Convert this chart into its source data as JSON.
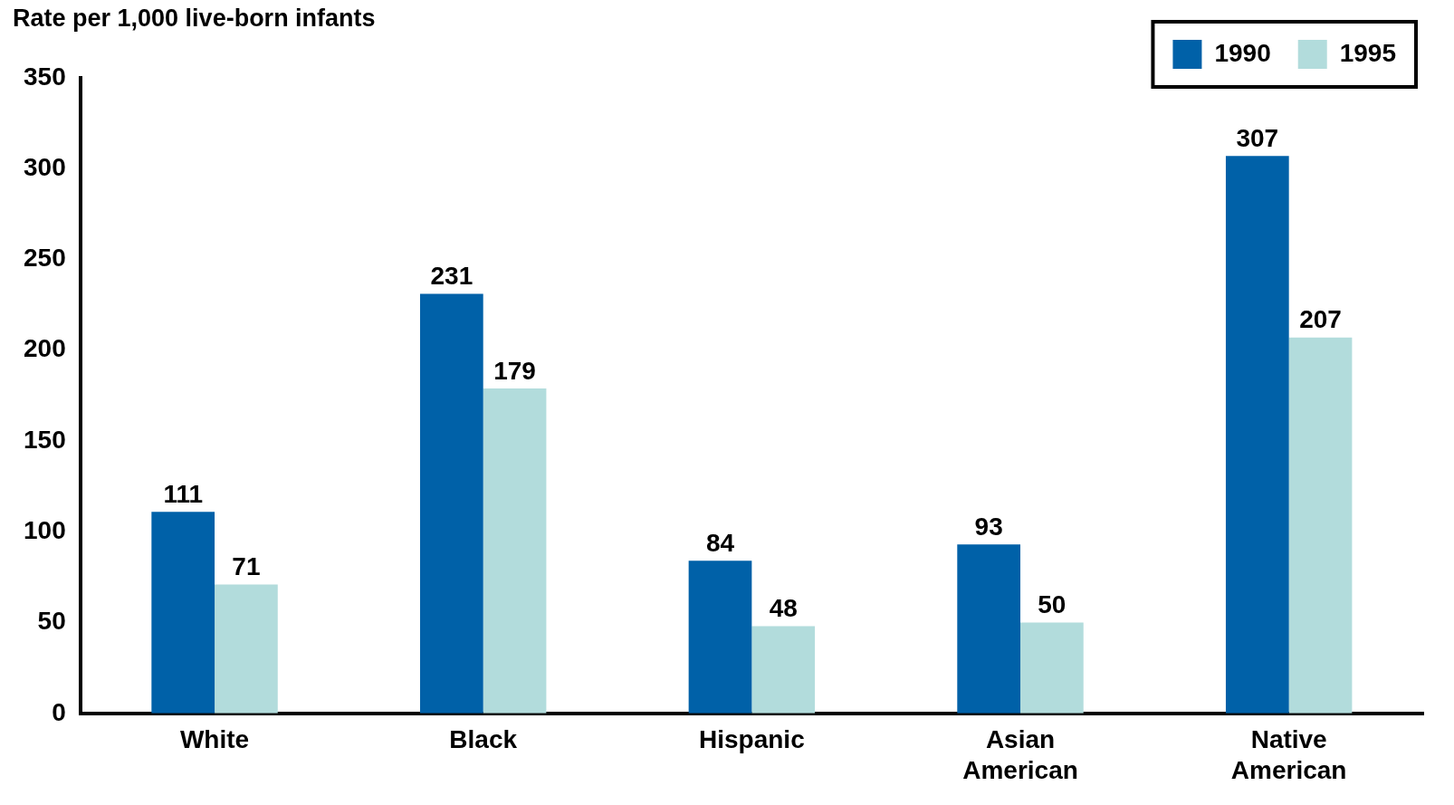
{
  "chart_data": {
    "type": "bar",
    "ylabel": "Rate per 1,000 live-born infants",
    "categories": [
      "White",
      "Black",
      "Hispanic",
      "Asian American",
      "Native American"
    ],
    "series": [
      {
        "name": "1990",
        "color": "#0061a8",
        "values": [
          111,
          231,
          84,
          93,
          307
        ]
      },
      {
        "name": "1995",
        "color": "#b2dcdc",
        "values": [
          71,
          179,
          48,
          50,
          207
        ]
      }
    ],
    "ylim": [
      0,
      350
    ],
    "yticks": [
      0,
      50,
      100,
      150,
      200,
      250,
      300,
      350
    ],
    "grid": false,
    "legend": "top right",
    "data_labels": true
  }
}
